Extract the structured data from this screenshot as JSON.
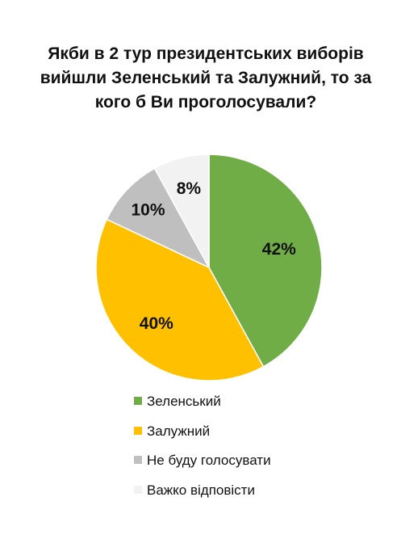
{
  "title_lines": [
    "Якби в 2 тур президентських виборів",
    "вийшли Зеленський та Залужний, то за",
    "кого б Ви проголосували?"
  ],
  "chart_data": {
    "type": "pie",
    "title": "Якби в 2 тур президентських виборів вийшли Зеленський та Залужний, то за кого б Ви проголосували?",
    "slices": [
      {
        "label": "Зеленський",
        "value": 42,
        "display": "42%",
        "color": "#70ad47"
      },
      {
        "label": "Залужний",
        "value": 40,
        "display": "40%",
        "color": "#ffc000"
      },
      {
        "label": "Не буду голосувати",
        "value": 10,
        "display": "10%",
        "color": "#bfbfbf"
      },
      {
        "label": "Важко відповісти",
        "value": 8,
        "display": "8%",
        "color": "#f2f2f2"
      }
    ],
    "start_angle": "top, clockwise",
    "legend_placement": "bottom"
  }
}
